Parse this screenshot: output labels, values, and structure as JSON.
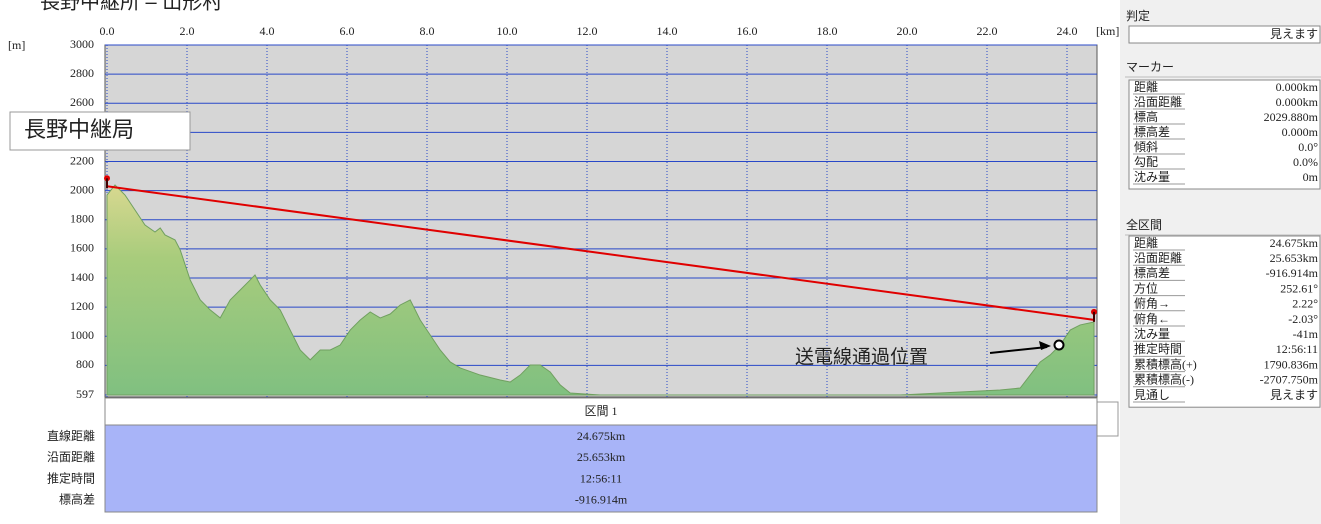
{
  "title": "長野中継所 – 山形村",
  "chart_data": {
    "type": "area",
    "xlabel": "[km]",
    "ylabel": "[m]",
    "xlim": [
      0,
      24.675
    ],
    "ylim": [
      597,
      3000
    ],
    "xticks": [
      {
        "value": 0,
        "label": "0.0"
      },
      {
        "value": 2,
        "label": "2.0"
      },
      {
        "value": 4,
        "label": "4.0"
      },
      {
        "value": 6,
        "label": "6.0"
      },
      {
        "value": 8,
        "label": "8.0"
      },
      {
        "value": 10,
        "label": "10.0"
      },
      {
        "value": 12,
        "label": "12.0"
      },
      {
        "value": 14,
        "label": "14.0"
      },
      {
        "value": 16,
        "label": "16.0"
      },
      {
        "value": 18,
        "label": "18.0"
      },
      {
        "value": 20,
        "label": "20.0"
      },
      {
        "value": 22,
        "label": "22.0"
      },
      {
        "value": 24,
        "label": "24.0"
      }
    ],
    "yticks": [
      3000,
      2800,
      2600,
      2400,
      2200,
      2000,
      1800,
      1600,
      1400,
      1200,
      1000,
      800,
      597
    ],
    "grid": true,
    "series": [
      {
        "type": "area",
        "color": "#88c070",
        "x": [
          0,
          0.2,
          0.45,
          0.7,
          0.95,
          1.2,
          1.33,
          1.45,
          1.7,
          1.83,
          2.08,
          2.33,
          2.58,
          2.83,
          3.08,
          3.33,
          3.58,
          3.7,
          3.83,
          4.08,
          4.33,
          4.58,
          4.83,
          5.08,
          5.33,
          5.58,
          5.83,
          6.08,
          6.33,
          6.58,
          6.83,
          7.08,
          7.33,
          7.58,
          7.83,
          8.08,
          8.33,
          8.58,
          8.83,
          9.33,
          9.83,
          10.08,
          10.33,
          10.58,
          10.83,
          11.08,
          11.33,
          11.58,
          12.33,
          14.83,
          19.83,
          22.33,
          22.83,
          23.08,
          23.33,
          23.58,
          23.83,
          24.08,
          24.33,
          24.675
        ],
        "values": [
          1970,
          2039,
          1970,
          1867,
          1764,
          1716,
          1744,
          1696,
          1662,
          1593,
          1387,
          1250,
          1181,
          1126,
          1250,
          1318,
          1387,
          1421,
          1352,
          1250,
          1181,
          1043,
          906,
          838,
          906,
          906,
          940,
          1043,
          1112,
          1167,
          1126,
          1153,
          1215,
          1250,
          1112,
          1009,
          906,
          824,
          783,
          734,
          700,
          686,
          734,
          803,
          803,
          755,
          666,
          611,
          597,
          597,
          597,
          631,
          645,
          734,
          824,
          872,
          940,
          1043,
          1078,
          1098
        ]
      },
      {
        "type": "line",
        "color": "#e00000",
        "x": [
          0,
          24.675
        ],
        "values": [
          2029.88,
          1112.966
        ]
      }
    ],
    "annotations": [
      {
        "text": "長野中継局"
      },
      {
        "text": "山形村"
      },
      {
        "text": "送電線通過位置",
        "x": 23.8,
        "y": 940
      }
    ]
  },
  "section_table": {
    "header": "区間 1",
    "rows": [
      [
        "直線距離",
        "24.675km"
      ],
      [
        "沿面距離",
        "25.653km"
      ],
      [
        "推定時間",
        "12:56:11"
      ],
      [
        "標高差",
        "-916.914m"
      ]
    ]
  },
  "side_panel": {
    "judgement_label": "判定",
    "judgement": "見えます",
    "marker_label": "マーカー",
    "marker_rows": [
      [
        "距離",
        "0.000km"
      ],
      [
        "沿面距離",
        "0.000km"
      ],
      [
        "標高",
        "2029.880m"
      ],
      [
        "標高差",
        "0.000m"
      ],
      [
        "傾斜",
        "0.0°"
      ],
      [
        "勾配",
        "0.0%"
      ],
      [
        "沈み量",
        "0m"
      ]
    ],
    "total_label": "全区間",
    "total_rows": [
      [
        "距離",
        "24.675km"
      ],
      [
        "沿面距離",
        "25.653km"
      ],
      [
        "標高差",
        "-916.914m"
      ],
      [
        "方位",
        "252.61°"
      ],
      [
        "俯角→",
        "2.22°"
      ],
      [
        "俯角←",
        "-2.03°"
      ],
      [
        "沈み量",
        "-41m"
      ],
      [
        "推定時間",
        "12:56:11"
      ],
      [
        "累積標高(+)",
        "1790.836m"
      ],
      [
        "累積標高(-)",
        "-2707.750m"
      ],
      [
        "見通し",
        "見えます"
      ]
    ]
  }
}
